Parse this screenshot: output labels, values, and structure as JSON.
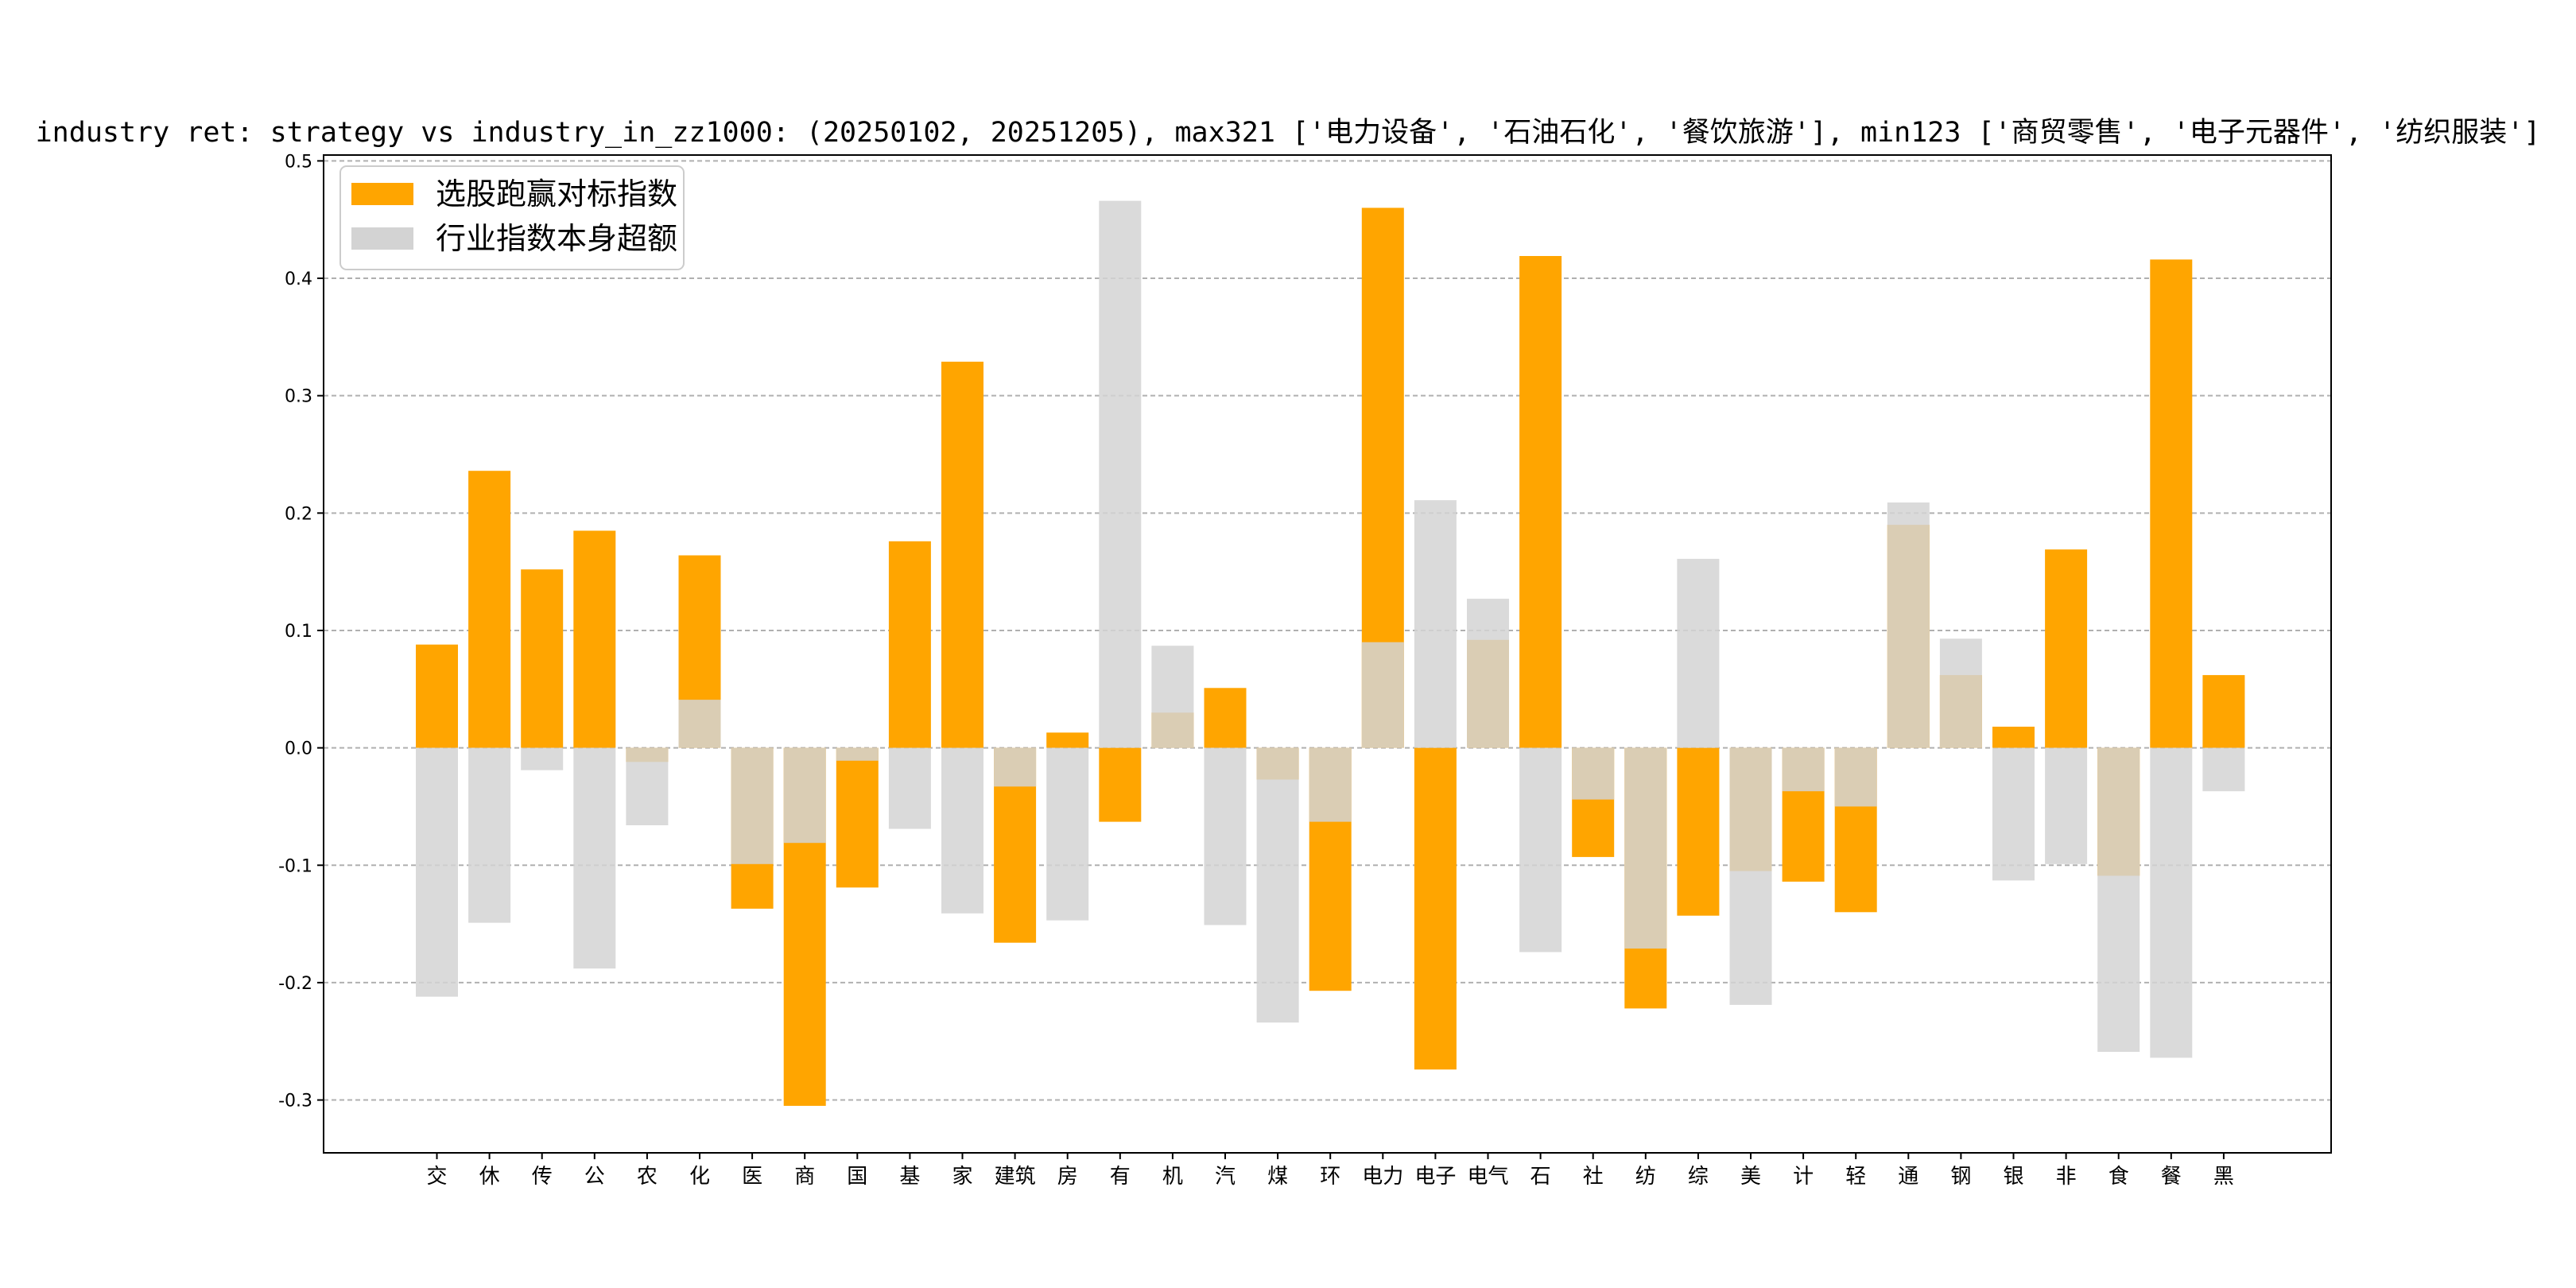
{
  "chart_data": {
    "type": "bar",
    "title": "industry ret: strategy vs industry_in_zz1000: (20250102, 20251205), max321 ['电力设备', '石油石化', '餐饮旅游'], min123 ['商贸零售', '电子元器件', '纺织服装']",
    "xlabel": "",
    "ylabel": "",
    "ylim": [
      -0.345,
      0.505
    ],
    "yticks": [
      -0.3,
      -0.2,
      -0.1,
      0.0,
      0.1,
      0.2,
      0.3,
      0.4,
      0.5
    ],
    "ytick_labels": [
      "-0.3",
      "-0.2",
      "-0.1",
      "0.0",
      "0.1",
      "0.2",
      "0.3",
      "0.4",
      "0.5"
    ],
    "grid": "horizontal dashed",
    "legend_position": "top-left",
    "categories": [
      "交",
      "休",
      "传",
      "公",
      "农",
      "化",
      "医",
      "商",
      "国",
      "基",
      "家",
      "建筑",
      "房",
      "有",
      "机",
      "汽",
      "煤",
      "环",
      "电力",
      "电子",
      "电气",
      "石",
      "社",
      "纺",
      "综",
      "美",
      "计",
      "轻",
      "通",
      "钢",
      "银",
      "非",
      "食",
      "餐",
      "黑"
    ],
    "series": [
      {
        "name": "选股跑赢对标指数",
        "color": "#FFA500",
        "values": [
          0.088,
          0.236,
          0.152,
          0.185,
          -0.012,
          0.164,
          -0.137,
          -0.305,
          -0.119,
          0.176,
          0.329,
          -0.166,
          0.013,
          -0.063,
          0.03,
          0.051,
          -0.027,
          -0.207,
          0.46,
          -0.274,
          0.092,
          0.419,
          -0.093,
          -0.222,
          -0.143,
          -0.105,
          -0.114,
          -0.14,
          0.19,
          0.062,
          0.018,
          0.169,
          -0.109,
          0.416,
          0.062
        ]
      },
      {
        "name": "行业指数本身超额",
        "color": "#D3D3D3",
        "values": [
          -0.212,
          -0.149,
          -0.019,
          -0.188,
          -0.066,
          0.041,
          -0.099,
          -0.081,
          -0.011,
          -0.069,
          -0.141,
          -0.033,
          -0.147,
          0.466,
          0.087,
          -0.151,
          -0.234,
          -0.063,
          0.09,
          0.211,
          0.127,
          -0.174,
          -0.044,
          -0.171,
          0.161,
          -0.219,
          -0.037,
          -0.05,
          0.209,
          0.093,
          -0.113,
          -0.099,
          -0.259,
          -0.264,
          -0.037
        ]
      }
    ]
  }
}
